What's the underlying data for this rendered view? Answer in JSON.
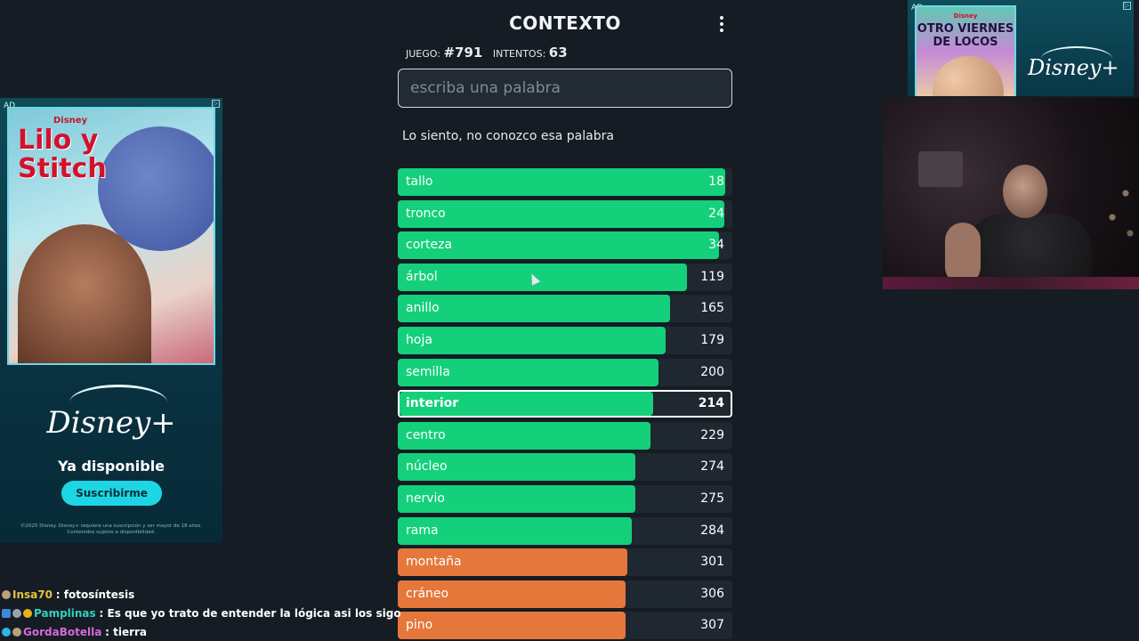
{
  "app": {
    "title": "CONTEXTO",
    "menu_icon": "more-vertical-icon"
  },
  "game_info": {
    "game_label": "JUEGO:",
    "game_number": "#791",
    "attempts_label": "INTENTOS:",
    "attempts_count": "63"
  },
  "search": {
    "placeholder": "escriba una palabra",
    "value": ""
  },
  "message": "Lo siento, no conozco esa palabra",
  "guesses": [
    {
      "word": "tallo",
      "rank": "18",
      "fill": 0.98,
      "color": "#14d07b",
      "highlight": false
    },
    {
      "word": "tronco",
      "rank": "24",
      "fill": 0.975,
      "color": "#14d07b",
      "highlight": false
    },
    {
      "word": "corteza",
      "rank": "34",
      "fill": 0.96,
      "color": "#14d07b",
      "highlight": false
    },
    {
      "word": "árbol",
      "rank": "119",
      "fill": 0.865,
      "color": "#14d07b",
      "highlight": false
    },
    {
      "word": "anillo",
      "rank": "165",
      "fill": 0.815,
      "color": "#14d07b",
      "highlight": false
    },
    {
      "word": "hoja",
      "rank": "179",
      "fill": 0.8,
      "color": "#14d07b",
      "highlight": false
    },
    {
      "word": "semilla",
      "rank": "200",
      "fill": 0.78,
      "color": "#14d07b",
      "highlight": false
    },
    {
      "word": "interior",
      "rank": "214",
      "fill": 0.765,
      "color": "#14d07b",
      "highlight": true
    },
    {
      "word": "centro",
      "rank": "229",
      "fill": 0.755,
      "color": "#14d07b",
      "highlight": false
    },
    {
      "word": "núcleo",
      "rank": "274",
      "fill": 0.71,
      "color": "#14d07b",
      "highlight": false
    },
    {
      "word": "nervio",
      "rank": "275",
      "fill": 0.71,
      "color": "#14d07b",
      "highlight": false
    },
    {
      "word": "rama",
      "rank": "284",
      "fill": 0.7,
      "color": "#14d07b",
      "highlight": false
    },
    {
      "word": "montaña",
      "rank": "301",
      "fill": 0.685,
      "color": "#e5773a",
      "highlight": false
    },
    {
      "word": "cráneo",
      "rank": "306",
      "fill": 0.68,
      "color": "#e5773a",
      "highlight": false
    },
    {
      "word": "pino",
      "rank": "307",
      "fill": 0.68,
      "color": "#e5773a",
      "highlight": false
    }
  ],
  "ad_left": {
    "badge": "AD",
    "brand_small": "Disney",
    "film_title": "Lilo y Stitch",
    "logo": "Disney+",
    "tagline": "Ya disponible",
    "cta": "Suscribirme",
    "legal": "©2025 Disney. Disney+ requiere una suscripción y ser mayor de 18 años. Contenidos sujetos a disponibilidad."
  },
  "ad_right": {
    "badge": "AD",
    "brand_small": "Disney",
    "film_title": "OTRO VIERNES DE LOCOS",
    "logo": "Disney+"
  },
  "chat": [
    {
      "user": "Insa70",
      "user_color": "#e8c23a",
      "message": ": fotosíntesis",
      "badges": [
        "#b7a27a"
      ]
    },
    {
      "user": "Pamplinas",
      "user_color": "#35d0b8",
      "message": ": Es que yo trato de entender la lógica asi los sigo",
      "badges": [
        "#3a8ad8",
        "#9aa3ad",
        "#e8b320"
      ]
    },
    {
      "user": "GordaBotella",
      "user_color": "#d46ad8",
      "message": ": tierra",
      "badges": [
        "#2bb5e8",
        "#b7a27a"
      ]
    }
  ]
}
